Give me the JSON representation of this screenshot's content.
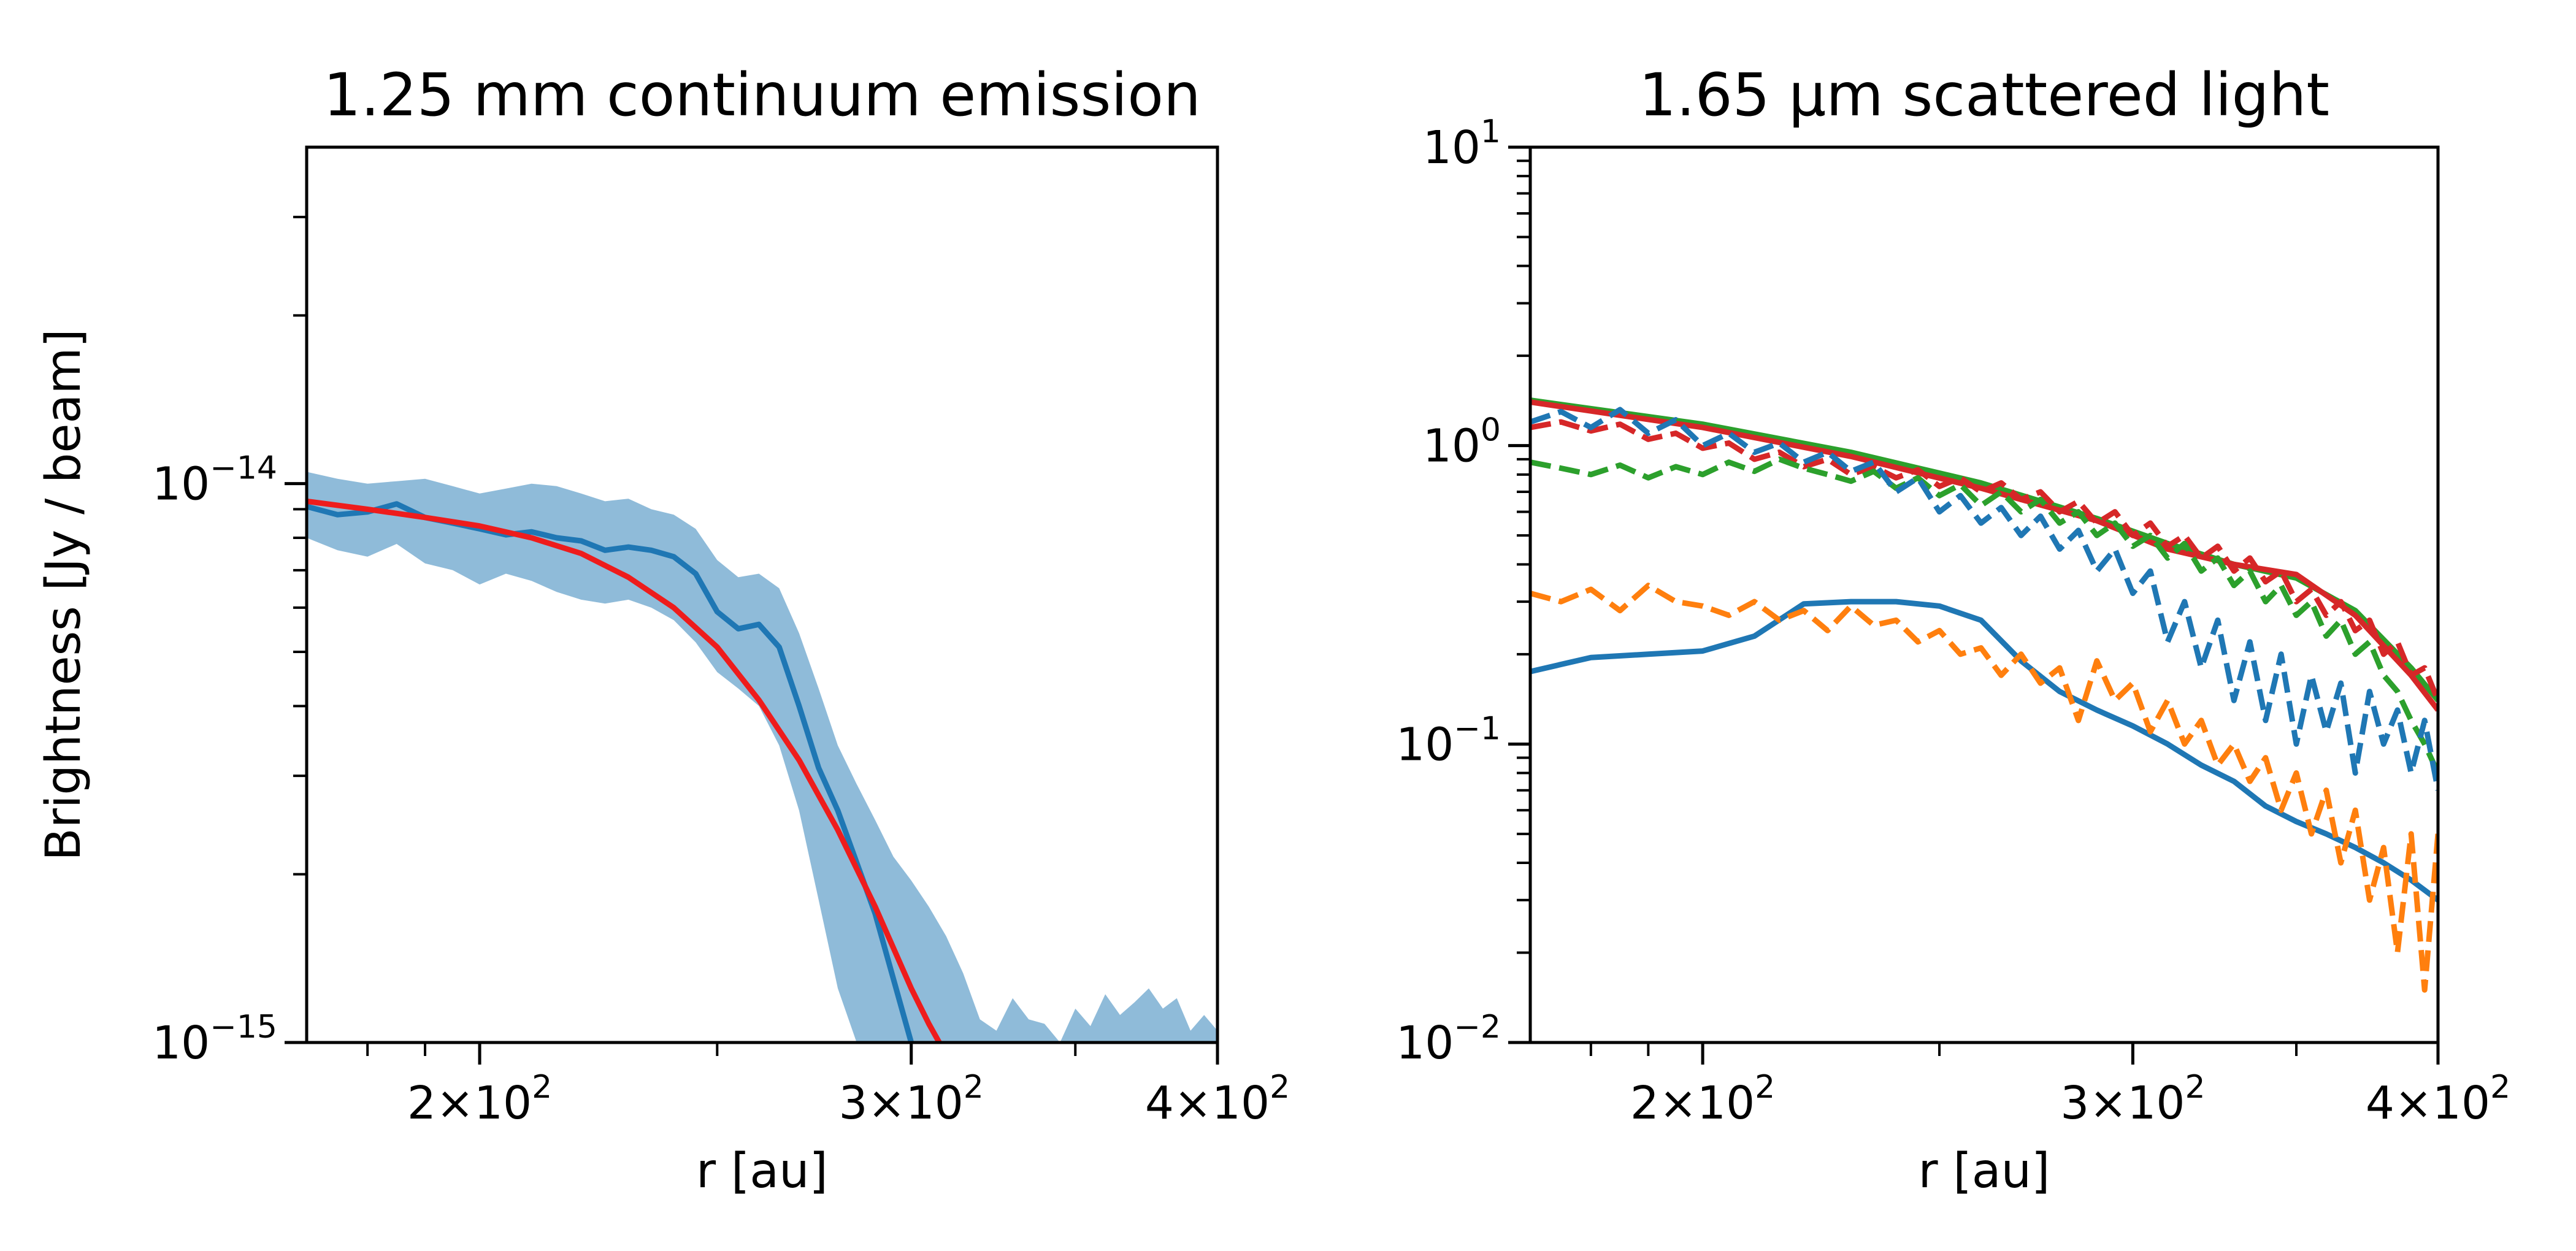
{
  "chart_data": [
    {
      "type": "line",
      "title": "1.25 mm continuum emission",
      "xlabel": "r [au]",
      "ylabel": "Brightness [Jy / beam]",
      "x_scale": "log",
      "y_scale": "log",
      "xlim": [
        170,
        400
      ],
      "ylim": [
        1e-15,
        4e-14
      ],
      "x_ticks": [
        {
          "value": 200,
          "mant": "2",
          "exp": "2"
        },
        {
          "value": 300,
          "mant": "3",
          "exp": "2"
        },
        {
          "value": 400,
          "mant": "4",
          "exp": "2"
        }
      ],
      "y_ticks": [
        {
          "value": 1e-15,
          "exp": "−15"
        },
        {
          "value": 1e-14,
          "exp": "−14"
        }
      ],
      "series": [
        {
          "color": "#1f77b4",
          "style": "band",
          "x": [
            170,
            175,
            180,
            185,
            190,
            195,
            200,
            205,
            210,
            215,
            220,
            225,
            230,
            235,
            240,
            245,
            250,
            255,
            260,
            265,
            270,
            275,
            280,
            285,
            290,
            295,
            300,
            305,
            310,
            315,
            320,
            325,
            330,
            335,
            340,
            345,
            350,
            355,
            360,
            365,
            370,
            375,
            380,
            385,
            390,
            395,
            400
          ],
          "upper": [
            1.05e-14,
            1.02e-14,
            1e-14,
            1.01e-14,
            1.02e-14,
            9.9e-15,
            9.6e-15,
            9.8e-15,
            1e-14,
            9.9e-15,
            9.6e-15,
            9.3e-15,
            9.4e-15,
            9e-15,
            8.8e-15,
            8.3e-15,
            7.3e-15,
            6.8e-15,
            6.9e-15,
            6.5e-15,
            5.4e-15,
            4.3e-15,
            3.4e-15,
            2.9e-15,
            2.5e-15,
            2.15e-15,
            1.95e-15,
            1.75e-15,
            1.55e-15,
            1.33e-15,
            1.1e-15,
            1.05e-15,
            1.2e-15,
            1.1e-15,
            1.08e-15,
            1e-15,
            1.15e-15,
            1.07e-15,
            1.22e-15,
            1.12e-15,
            1.18e-15,
            1.25e-15,
            1.15e-15,
            1.2e-15,
            1.05e-15,
            1.12e-15,
            1.05e-15
          ],
          "lower": [
            8e-15,
            7.6e-15,
            7.4e-15,
            7.8e-15,
            7.2e-15,
            7e-15,
            6.6e-15,
            6.9e-15,
            6.7e-15,
            6.4e-15,
            6.2e-15,
            6.1e-15,
            6.2e-15,
            6e-15,
            5.7e-15,
            5.2e-15,
            4.6e-15,
            4.3e-15,
            4e-15,
            3.4e-15,
            2.6e-15,
            1.8e-15,
            1.25e-15,
            1e-15,
            1e-15,
            1e-15,
            1e-15,
            1e-15,
            1e-15,
            1e-15,
            1e-15,
            1e-15,
            1e-15,
            1e-15,
            1e-15,
            1e-15,
            1e-15,
            1e-15,
            1e-15,
            1e-15,
            1e-15,
            1e-15,
            1e-15,
            1e-15,
            1e-15,
            1e-15,
            1e-15
          ]
        },
        {
          "color": "#1f77b4",
          "style": "solid",
          "x": [
            170,
            175,
            180,
            185,
            190,
            195,
            200,
            205,
            210,
            215,
            220,
            225,
            230,
            235,
            240,
            245,
            250,
            255,
            260,
            265,
            270,
            275,
            280,
            285,
            290,
            295,
            300
          ],
          "values": [
            9.1e-15,
            8.8e-15,
            8.9e-15,
            9.2e-15,
            8.7e-15,
            8.5e-15,
            8.3e-15,
            8.1e-15,
            8.2e-15,
            8e-15,
            7.9e-15,
            7.6e-15,
            7.7e-15,
            7.6e-15,
            7.4e-15,
            6.9e-15,
            5.9e-15,
            5.5e-15,
            5.6e-15,
            5.1e-15,
            4e-15,
            3.1e-15,
            2.6e-15,
            2.1e-15,
            1.7e-15,
            1.3e-15,
            1e-15
          ]
        },
        {
          "color": "#ee1c1c",
          "style": "solid",
          "x": [
            170,
            180,
            190,
            200,
            210,
            220,
            230,
            240,
            250,
            260,
            270,
            280,
            290,
            300,
            305,
            308
          ],
          "values": [
            9.3e-15,
            9e-15,
            8.7e-15,
            8.4e-15,
            8e-15,
            7.5e-15,
            6.8e-15,
            6e-15,
            5.1e-15,
            4.1e-15,
            3.2e-15,
            2.4e-15,
            1.75e-15,
            1.25e-15,
            1.08e-15,
            1e-15
          ]
        }
      ]
    },
    {
      "type": "line",
      "title": "1.65 μm scattered light",
      "xlabel": "r [au]",
      "ylabel": "",
      "x_scale": "log",
      "y_scale": "log",
      "xlim": [
        170,
        400
      ],
      "ylim": [
        0.01,
        10
      ],
      "x_ticks": [
        {
          "value": 200,
          "mant": "2",
          "exp": "2"
        },
        {
          "value": 300,
          "mant": "3",
          "exp": "2"
        },
        {
          "value": 400,
          "mant": "4",
          "exp": "2"
        }
      ],
      "y_ticks": [
        {
          "value": 0.01,
          "exp": "−2"
        },
        {
          "value": 0.1,
          "exp": "−1"
        },
        {
          "value": 1,
          "exp": "0"
        },
        {
          "value": 10,
          "exp": "1"
        }
      ],
      "series": [
        {
          "color": "#2ca02c",
          "style": "solid",
          "x": [
            170,
            200,
            230,
            260,
            290,
            310,
            330,
            350,
            370,
            390,
            400
          ],
          "values": [
            1.42,
            1.18,
            0.95,
            0.75,
            0.57,
            0.47,
            0.4,
            0.36,
            0.28,
            0.18,
            0.14
          ]
        },
        {
          "color": "#d62728",
          "style": "solid",
          "x": [
            170,
            200,
            230,
            260,
            290,
            310,
            330,
            350,
            370,
            390,
            400
          ],
          "values": [
            1.4,
            1.15,
            0.92,
            0.72,
            0.56,
            0.45,
            0.4,
            0.37,
            0.27,
            0.17,
            0.13
          ]
        },
        {
          "color": "#1f77b4",
          "style": "solid",
          "x": [
            170,
            180,
            190,
            200,
            210,
            220,
            230,
            240,
            250,
            260,
            270,
            280,
            290,
            300,
            310,
            320,
            330,
            340,
            350,
            360,
            370,
            380,
            390,
            400
          ],
          "values": [
            0.175,
            0.195,
            0.2,
            0.205,
            0.23,
            0.295,
            0.3,
            0.3,
            0.29,
            0.26,
            0.19,
            0.15,
            0.13,
            0.115,
            0.1,
            0.085,
            0.075,
            0.062,
            0.055,
            0.05,
            0.045,
            0.04,
            0.035,
            0.03
          ]
        },
        {
          "color": "#d62728",
          "style": "dashed",
          "x": [
            170,
            175,
            180,
            185,
            190,
            195,
            200,
            205,
            210,
            215,
            220,
            225,
            230,
            235,
            240,
            245,
            250,
            255,
            260,
            265,
            270,
            275,
            280,
            285,
            290,
            295,
            300,
            305,
            310,
            315,
            320,
            325,
            330,
            335,
            340,
            345,
            350,
            355,
            360,
            365,
            370,
            375,
            380,
            385,
            390,
            395,
            400
          ],
          "values": [
            1.15,
            1.2,
            1.12,
            1.18,
            1.05,
            1.1,
            0.98,
            1.02,
            0.9,
            0.95,
            0.85,
            0.9,
            0.8,
            0.85,
            0.78,
            0.83,
            0.73,
            0.78,
            0.7,
            0.75,
            0.66,
            0.7,
            0.6,
            0.65,
            0.55,
            0.6,
            0.5,
            0.55,
            0.46,
            0.5,
            0.42,
            0.46,
            0.38,
            0.42,
            0.35,
            0.38,
            0.3,
            0.33,
            0.27,
            0.3,
            0.24,
            0.26,
            0.2,
            0.22,
            0.17,
            0.18,
            0.14
          ]
        },
        {
          "color": "#2ca02c",
          "style": "dashed",
          "x": [
            170,
            175,
            180,
            185,
            190,
            195,
            200,
            205,
            210,
            215,
            220,
            225,
            230,
            235,
            240,
            245,
            250,
            255,
            260,
            265,
            270,
            275,
            280,
            285,
            290,
            295,
            300,
            305,
            310,
            315,
            320,
            325,
            330,
            335,
            340,
            345,
            350,
            355,
            360,
            365,
            370,
            375,
            380,
            385,
            390,
            395,
            400
          ],
          "values": [
            0.88,
            0.84,
            0.8,
            0.86,
            0.78,
            0.85,
            0.8,
            0.88,
            0.82,
            0.9,
            0.84,
            0.8,
            0.76,
            0.82,
            0.72,
            0.78,
            0.68,
            0.74,
            0.63,
            0.7,
            0.6,
            0.66,
            0.55,
            0.6,
            0.5,
            0.55,
            0.46,
            0.5,
            0.42,
            0.47,
            0.38,
            0.42,
            0.34,
            0.38,
            0.3,
            0.34,
            0.27,
            0.3,
            0.23,
            0.26,
            0.2,
            0.22,
            0.17,
            0.15,
            0.12,
            0.1,
            0.08
          ]
        },
        {
          "color": "#1f77b4",
          "style": "dashed",
          "x": [
            170,
            175,
            180,
            185,
            190,
            195,
            200,
            205,
            210,
            215,
            220,
            225,
            230,
            235,
            240,
            245,
            250,
            255,
            260,
            265,
            270,
            275,
            280,
            285,
            290,
            295,
            300,
            305,
            310,
            315,
            320,
            325,
            330,
            335,
            340,
            345,
            350,
            355,
            360,
            365,
            370,
            375,
            380,
            385,
            390,
            395,
            400
          ],
          "values": [
            1.2,
            1.3,
            1.15,
            1.32,
            1.1,
            1.22,
            1.0,
            1.1,
            0.95,
            1.02,
            0.88,
            0.95,
            0.82,
            0.88,
            0.7,
            0.78,
            0.6,
            0.68,
            0.55,
            0.62,
            0.5,
            0.58,
            0.45,
            0.52,
            0.38,
            0.45,
            0.32,
            0.38,
            0.22,
            0.3,
            0.18,
            0.26,
            0.14,
            0.22,
            0.12,
            0.2,
            0.1,
            0.17,
            0.11,
            0.16,
            0.08,
            0.15,
            0.1,
            0.13,
            0.08,
            0.12,
            0.07
          ]
        },
        {
          "color": "#ff7f0e",
          "style": "dashed",
          "x": [
            170,
            175,
            180,
            185,
            190,
            195,
            200,
            205,
            210,
            215,
            220,
            225,
            230,
            235,
            240,
            245,
            250,
            255,
            260,
            265,
            270,
            275,
            280,
            285,
            290,
            295,
            300,
            305,
            310,
            315,
            320,
            325,
            330,
            335,
            340,
            345,
            350,
            355,
            360,
            365,
            370,
            375,
            380,
            385,
            390,
            395,
            400
          ],
          "values": [
            0.32,
            0.3,
            0.33,
            0.28,
            0.34,
            0.3,
            0.29,
            0.27,
            0.3,
            0.26,
            0.28,
            0.24,
            0.29,
            0.25,
            0.26,
            0.22,
            0.24,
            0.2,
            0.21,
            0.17,
            0.2,
            0.16,
            0.18,
            0.12,
            0.19,
            0.14,
            0.16,
            0.11,
            0.14,
            0.1,
            0.12,
            0.085,
            0.1,
            0.075,
            0.09,
            0.06,
            0.08,
            0.05,
            0.07,
            0.04,
            0.06,
            0.03,
            0.045,
            0.02,
            0.05,
            0.015,
            0.05
          ]
        }
      ]
    }
  ]
}
